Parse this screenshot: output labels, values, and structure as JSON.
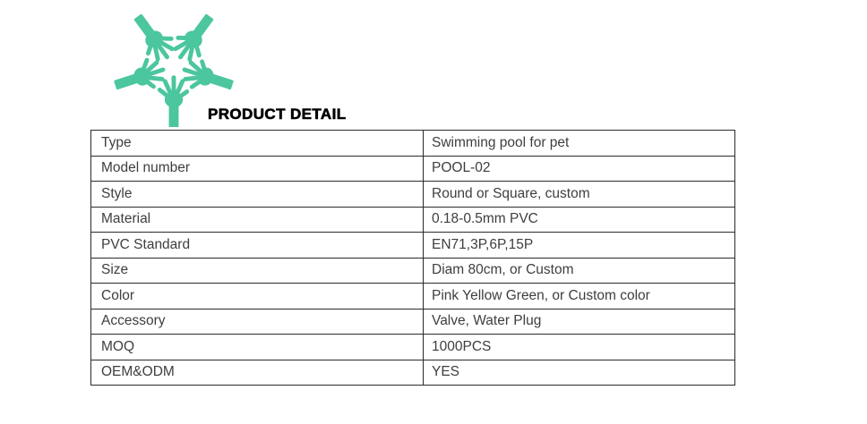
{
  "logo": {
    "icon": "five-hands-circle-icon",
    "color": "#4BC69E"
  },
  "header": {
    "title": "PRODUCT DETAIL"
  },
  "table": {
    "rows": [
      {
        "label": "Type",
        "value": "Swimming pool for pet"
      },
      {
        "label": "Model number",
        "value": "POOL-02"
      },
      {
        "label": "Style",
        "value": "Round or Square, custom"
      },
      {
        "label": "Material",
        "value": "0.18-0.5mm PVC"
      },
      {
        "label": "PVC Standard",
        "value": "EN71,3P,6P,15P"
      },
      {
        "label": "Size",
        "value": "Diam 80cm, or Custom"
      },
      {
        "label": "Color",
        "value": "Pink Yellow Green, or Custom color"
      },
      {
        "label": "Accessory",
        "value": "Valve, Water Plug"
      },
      {
        "label": "MOQ",
        "value": "1000PCS"
      },
      {
        "label": "OEM&ODM",
        "value": "YES"
      }
    ]
  }
}
